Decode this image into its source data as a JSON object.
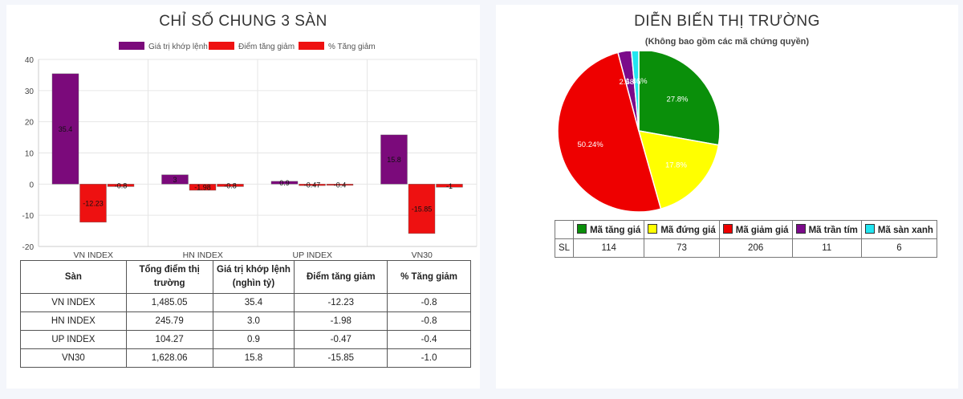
{
  "left": {
    "title": "CHỈ SỐ CHUNG 3 SÀN",
    "table": {
      "headers": [
        "Sàn",
        "Tổng điểm thị trường",
        "Giá trị khớp lệnh (nghìn tỷ)",
        "Điểm tăng giảm",
        "% Tăng giảm"
      ],
      "rows": [
        [
          "VN INDEX",
          "1,485.05",
          "35.4",
          "-12.23",
          "-0.8"
        ],
        [
          "HN INDEX",
          "245.79",
          "3.0",
          "-1.98",
          "-0.8"
        ],
        [
          "UP INDEX",
          "104.27",
          "0.9",
          "-0.47",
          "-0.4"
        ],
        [
          "VN30",
          "1,628.06",
          "15.8",
          "-15.85",
          "-1.0"
        ]
      ]
    }
  },
  "right": {
    "title": "DIỄN BIẾN THỊ TRƯỜNG",
    "subtitle": "(Không bao gồm các mã chứng quyền)",
    "legend_table": {
      "row_label": "SL",
      "items": [
        {
          "label": "Mã tăng giá",
          "value": "114",
          "color": "#0a8f0a"
        },
        {
          "label": "Mã đứng giá",
          "value": "73",
          "color": "#ffff00"
        },
        {
          "label": "Mã giảm giá",
          "value": "206",
          "color": "#ee0000"
        },
        {
          "label": "Mã trần tím",
          "value": "11",
          "color": "#7b0a8a"
        },
        {
          "label": "Mã sàn xanh",
          "value": "6",
          "color": "#22e5f0"
        }
      ]
    }
  },
  "chart_data": [
    {
      "type": "bar",
      "title": "CHỈ SỐ CHUNG 3 SÀN",
      "categories": [
        "VN INDEX",
        "HN INDEX",
        "UP INDEX",
        "VN30"
      ],
      "series": [
        {
          "name": "Giá trị khớp lệnh",
          "color": "#7b0a7b",
          "values": [
            35.4,
            3.0,
            0.9,
            15.8
          ],
          "labels": [
            "35.4",
            "3",
            "0.9",
            "15.8"
          ]
        },
        {
          "name": "Điểm tăng giảm",
          "color": "#ee1111",
          "values": [
            -12.23,
            -1.98,
            -0.47,
            -15.85
          ],
          "labels": [
            "-12.23",
            "-1.98",
            "-0.47",
            "-15.85"
          ]
        },
        {
          "name": "% Tăng giảm",
          "color": "#ee1111",
          "values": [
            -0.8,
            -0.8,
            -0.4,
            -1.0
          ],
          "labels": [
            "-0.8",
            "-0.8",
            "-0.4",
            "-1"
          ]
        }
      ],
      "ylim": [
        -20,
        40
      ],
      "yticks": [
        "-20",
        "-10",
        "0",
        "10",
        "20",
        "30",
        "40"
      ],
      "legend": "top",
      "grid": true
    },
    {
      "type": "pie",
      "title": "DIỄN BIẾN THỊ TRƯỜNG",
      "categories": [
        "Mã tăng giá",
        "Mã đứng giá",
        "Mã giảm giá",
        "Mã trần tím",
        "Mã sàn xanh"
      ],
      "values": [
        114,
        73,
        206,
        11,
        6
      ],
      "percent_labels": [
        "27.8%",
        "17.8%",
        "50.24%",
        "2.68%",
        "1.46%"
      ],
      "colors": [
        "#0a8f0a",
        "#ffff00",
        "#ee0000",
        "#7b0a8a",
        "#22e5f0"
      ]
    }
  ]
}
